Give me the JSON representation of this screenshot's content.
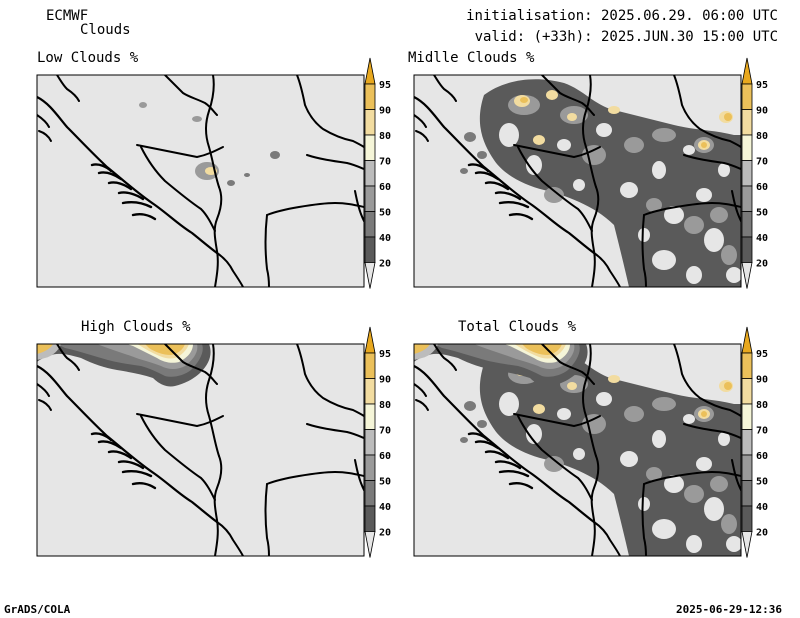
{
  "header": {
    "model": "ECMWF",
    "product": "Clouds",
    "initialisation": "initialisation: 2025.06.29. 06:00 UTC",
    "valid": "valid: (+33h): 2025.JUN.30 15:00 UTC"
  },
  "footer": {
    "left": "GrADS/COLA",
    "right": "2025-06-29-12:36"
  },
  "panels": [
    {
      "title": "Low Clouds %"
    },
    {
      "title": "Midlle Clouds %"
    },
    {
      "title": "High Clouds %"
    },
    {
      "title": "Total Clouds %"
    }
  ],
  "legend": {
    "labels": [
      "20",
      "40",
      "50",
      "60",
      "70",
      "80",
      "90",
      "95"
    ],
    "colors": [
      "#5a5a5a",
      "#7a7a7a",
      "#9a9a9a",
      "#bcbcbc",
      "#f5f5d8",
      "#f2dca0",
      "#ebc05a",
      "#e8a81e"
    ],
    "background_color": "#e6e6e6"
  }
}
